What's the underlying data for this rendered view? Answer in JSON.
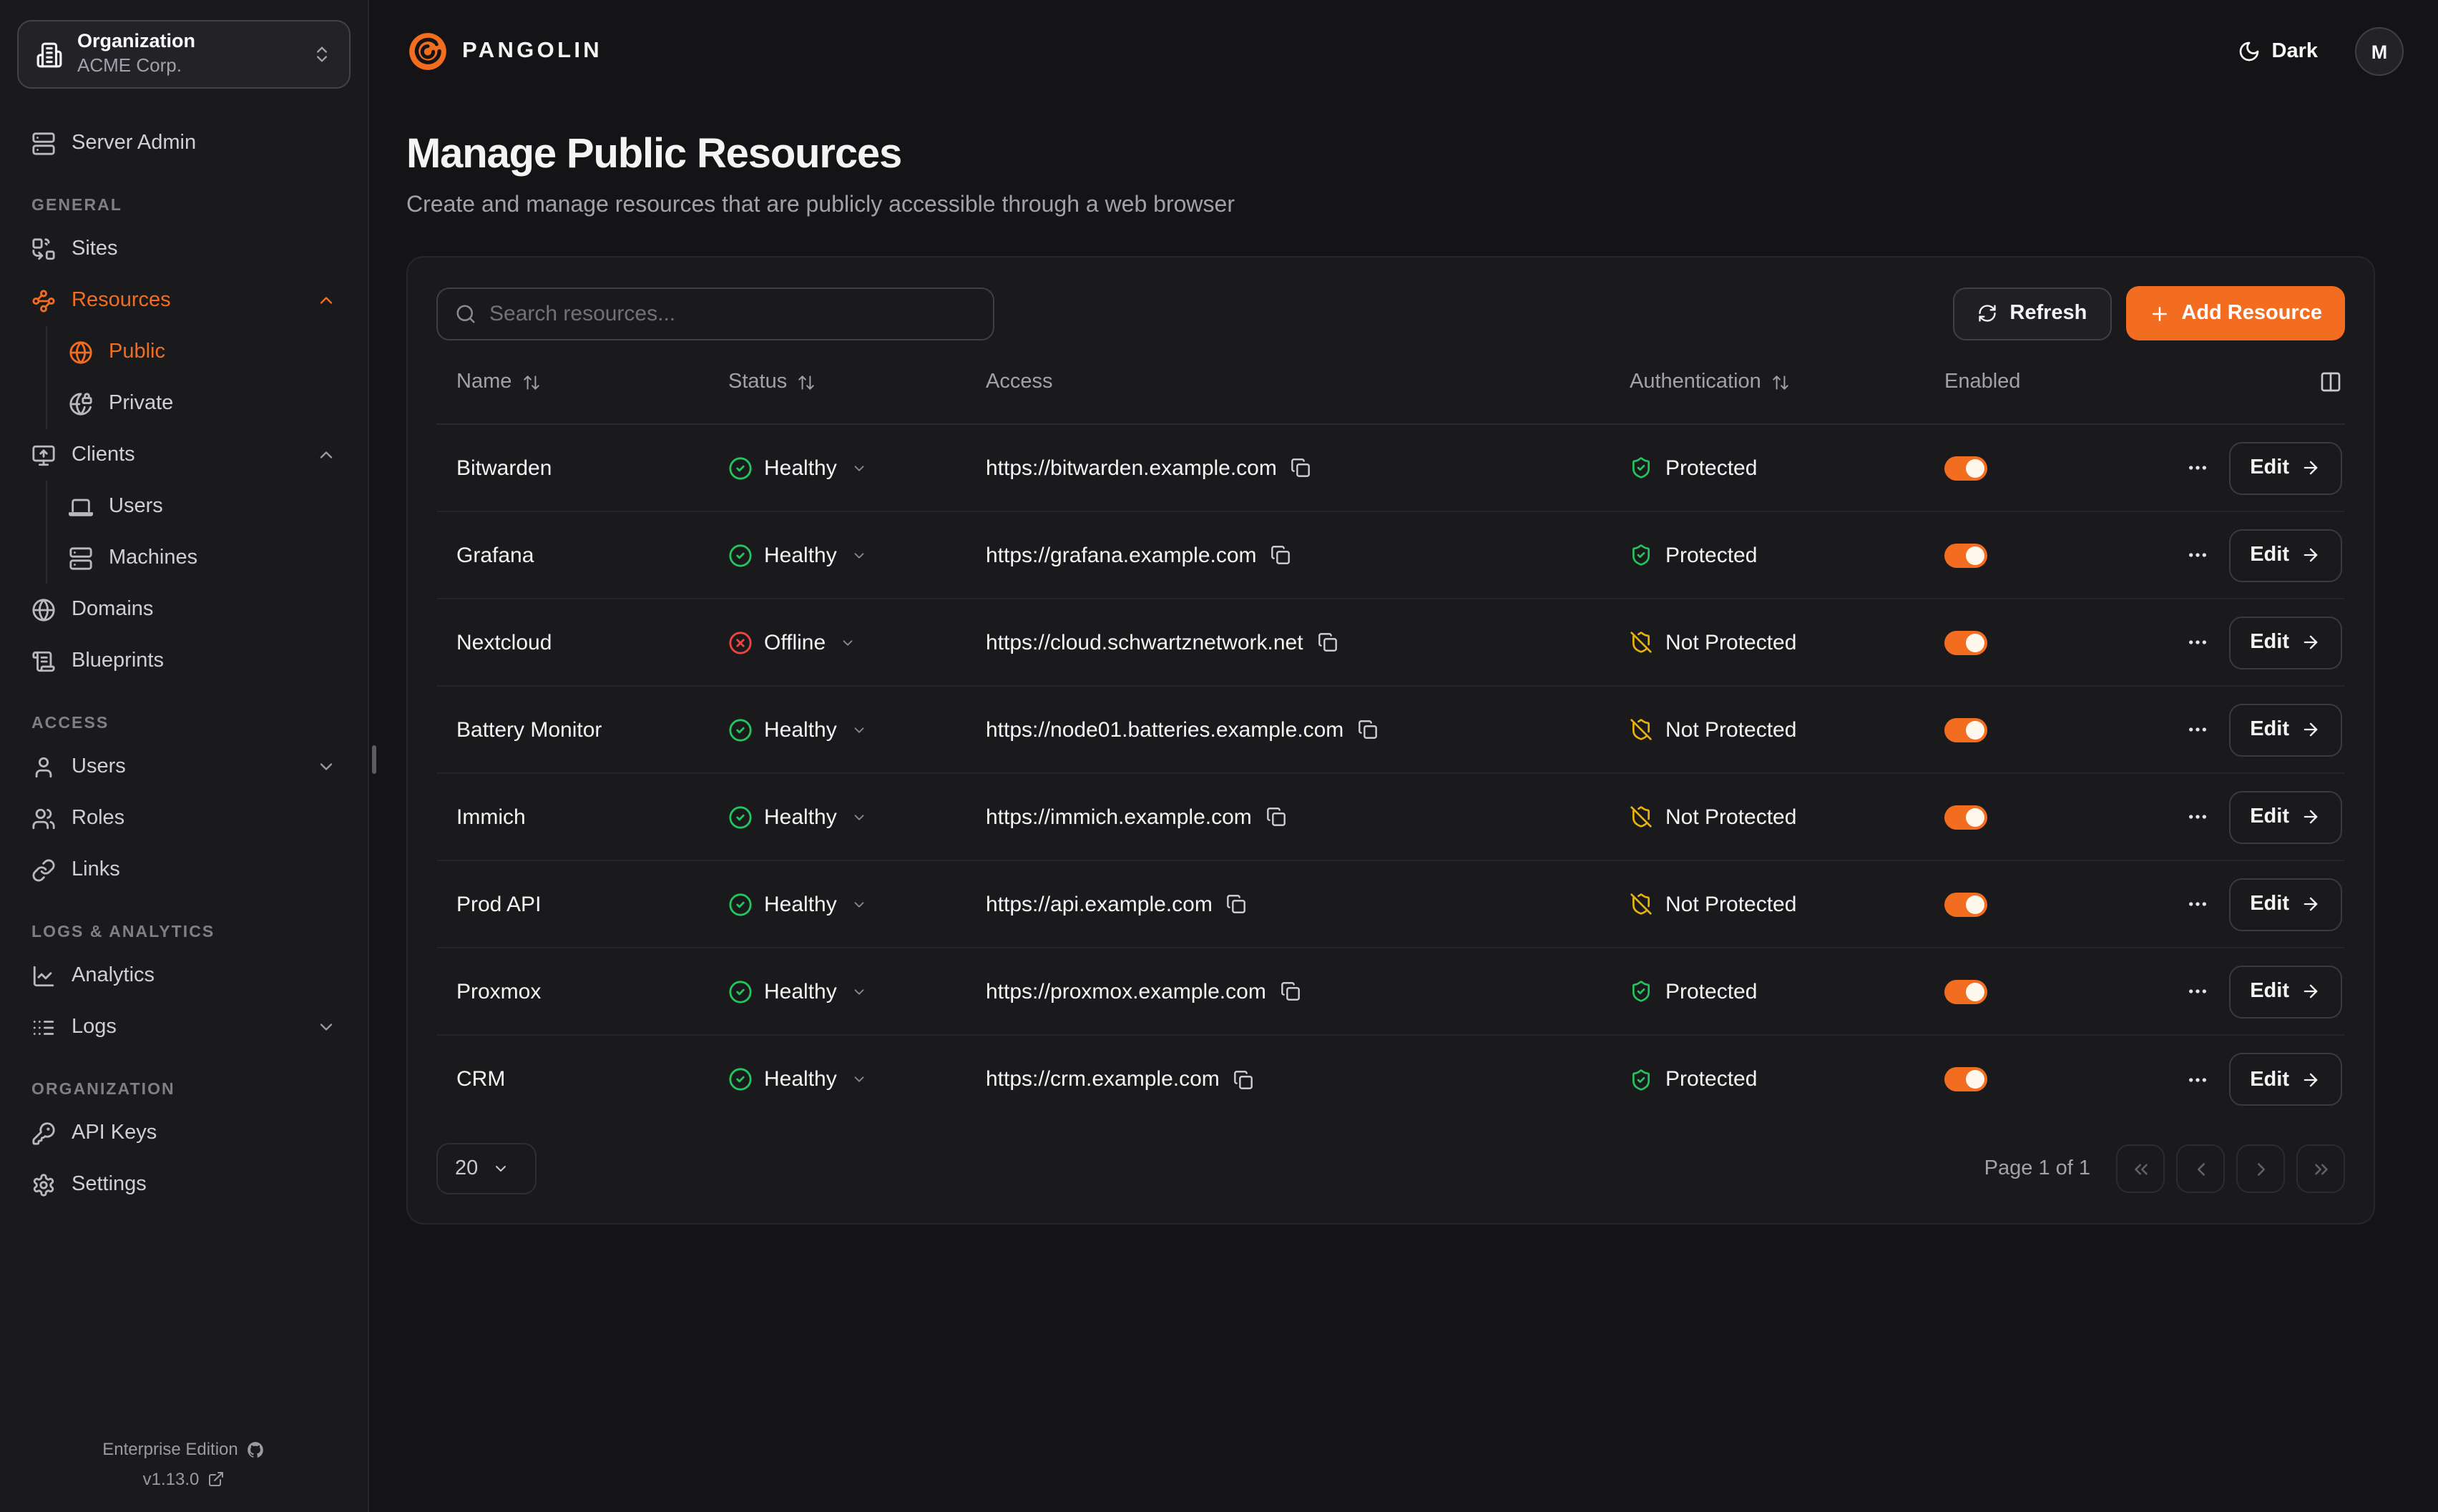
{
  "app": {
    "brand": "PANGOLIN",
    "theme_toggle_label": "Dark",
    "avatar_initial": "M"
  },
  "org_selector": {
    "label": "Organization",
    "value": "ACME Corp.",
    "icon": "building-icon"
  },
  "sidebar": {
    "server_admin": {
      "id": "server-admin",
      "label": "Server Admin",
      "icon": "server-icon"
    },
    "sections": [
      {
        "title": "GENERAL",
        "items": [
          {
            "id": "sites",
            "label": "Sites",
            "icon": "sites-icon"
          },
          {
            "id": "resources",
            "label": "Resources",
            "icon": "waypoints-icon",
            "active": true,
            "expanded": true,
            "children": [
              {
                "id": "public",
                "label": "Public",
                "icon": "globe-icon",
                "active": true
              },
              {
                "id": "private",
                "label": "Private",
                "icon": "globe-lock-icon"
              }
            ]
          },
          {
            "id": "clients",
            "label": "Clients",
            "icon": "monitor-up-icon",
            "expanded": true,
            "children": [
              {
                "id": "client-users",
                "label": "Users",
                "icon": "laptop-icon"
              },
              {
                "id": "machines",
                "label": "Machines",
                "icon": "server-icon"
              }
            ]
          },
          {
            "id": "domains",
            "label": "Domains",
            "icon": "globe-icon"
          },
          {
            "id": "blueprints",
            "label": "Blueprints",
            "icon": "scroll-icon"
          }
        ]
      },
      {
        "title": "ACCESS",
        "items": [
          {
            "id": "users",
            "label": "Users",
            "icon": "user-icon",
            "collapsed": true
          },
          {
            "id": "roles",
            "label": "Roles",
            "icon": "users-icon"
          },
          {
            "id": "links",
            "label": "Links",
            "icon": "link-icon"
          }
        ]
      },
      {
        "title": "LOGS & ANALYTICS",
        "items": [
          {
            "id": "analytics",
            "label": "Analytics",
            "icon": "chart-line-icon"
          },
          {
            "id": "logs",
            "label": "Logs",
            "icon": "list-icon",
            "collapsed": true
          }
        ]
      },
      {
        "title": "ORGANIZATION",
        "items": [
          {
            "id": "api-keys",
            "label": "API Keys",
            "icon": "key-icon"
          },
          {
            "id": "settings",
            "label": "Settings",
            "icon": "gear-icon"
          }
        ]
      }
    ],
    "footer": {
      "edition": "Enterprise Edition",
      "version": "v1.13.0"
    }
  },
  "page": {
    "title": "Manage Public Resources",
    "subtitle": "Create and manage resources that are publicly accessible through a web browser"
  },
  "toolbar": {
    "search_placeholder": "Search resources...",
    "refresh_label": "Refresh",
    "add_resource_label": "Add Resource"
  },
  "table": {
    "columns": [
      "Name",
      "Status",
      "Access",
      "Authentication",
      "Enabled"
    ],
    "edit_label": "Edit",
    "rows": [
      {
        "name": "Bitwarden",
        "status": "Healthy",
        "url": "https://bitwarden.example.com",
        "auth": "Protected",
        "enabled": true
      },
      {
        "name": "Grafana",
        "status": "Healthy",
        "url": "https://grafana.example.com",
        "auth": "Protected",
        "enabled": true
      },
      {
        "name": "Nextcloud",
        "status": "Offline",
        "url": "https://cloud.schwartznetwork.net",
        "auth": "Not Protected",
        "enabled": true
      },
      {
        "name": "Battery Monitor",
        "status": "Healthy",
        "url": "https://node01.batteries.example.com",
        "auth": "Not Protected",
        "enabled": true
      },
      {
        "name": "Immich",
        "status": "Healthy",
        "url": "https://immich.example.com",
        "auth": "Not Protected",
        "enabled": true
      },
      {
        "name": "Prod API",
        "status": "Healthy",
        "url": "https://api.example.com",
        "auth": "Not Protected",
        "enabled": true
      },
      {
        "name": "Proxmox",
        "status": "Healthy",
        "url": "https://proxmox.example.com",
        "auth": "Protected",
        "enabled": true
      },
      {
        "name": "CRM",
        "status": "Healthy",
        "url": "https://crm.example.com",
        "auth": "Protected",
        "enabled": true
      }
    ]
  },
  "pagination": {
    "page_size": "20",
    "page_info": "Page 1 of 1"
  },
  "colors": {
    "accent": "#f36d21",
    "healthy": "#22c55e",
    "offline": "#ef4444",
    "protected": "#22c55e",
    "not_protected": "#eab308",
    "background": "#141417",
    "panel": "#1a1a1d"
  }
}
